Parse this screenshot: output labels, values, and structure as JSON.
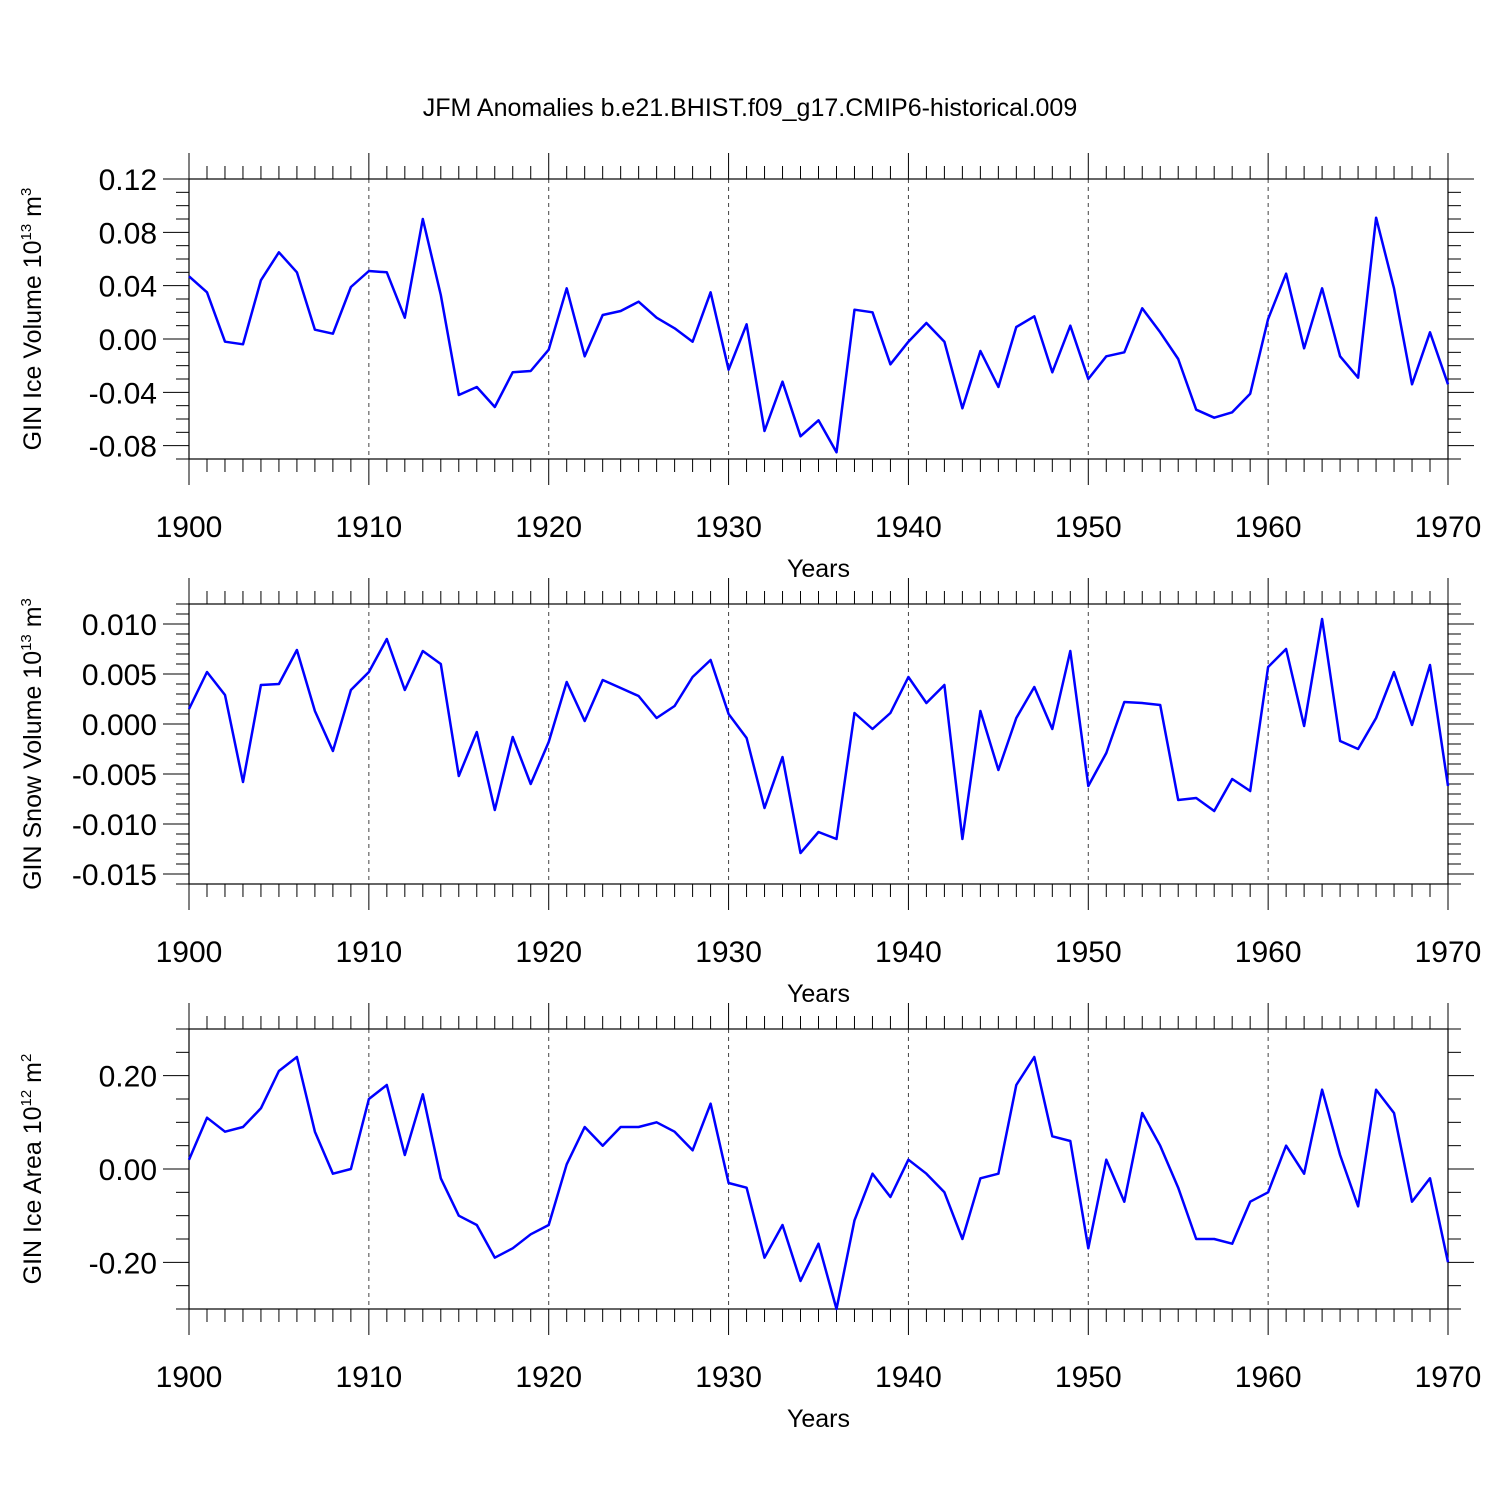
{
  "title": "JFM Anomalies b.e21.BHIST.f09_g17.CMIP6-historical.009",
  "line_color": "#0000ff",
  "chart_data": [
    {
      "type": "line",
      "name": "ice-volume",
      "ylabel": {
        "main": "GIN Ice Volume 10",
        "sup1": "13",
        "mid": " m",
        "sup2": "3"
      },
      "xlabel": "Years",
      "xlim": [
        1900,
        1970
      ],
      "ylim": [
        -0.09,
        0.12
      ],
      "x_ticks": [
        1900,
        1910,
        1920,
        1930,
        1940,
        1950,
        1960,
        1970
      ],
      "x_tick_labels": [
        "1900",
        "1910",
        "1920",
        "1930",
        "1940",
        "1950",
        "1960",
        "1970"
      ],
      "y_ticks": [
        -0.08,
        -0.04,
        0,
        0.04,
        0.08,
        0.12
      ],
      "y_tick_labels": [
        "-0.08",
        "-0.04",
        "0.00",
        "0.04",
        "0.08",
        "0.12"
      ],
      "y_minor_step": 0.01,
      "x_start": 1900,
      "values": [
        0.047,
        0.035,
        -0.002,
        -0.004,
        0.044,
        0.065,
        0.05,
        0.007,
        0.004,
        0.039,
        0.051,
        0.05,
        0.016,
        0.09,
        0.033,
        -0.042,
        -0.036,
        -0.051,
        -0.025,
        -0.024,
        -0.008,
        0.038,
        -0.013,
        0.018,
        0.021,
        0.028,
        0.016,
        0.008,
        -0.002,
        0.035,
        -0.023,
        0.011,
        -0.069,
        -0.032,
        -0.073,
        -0.061,
        -0.085,
        0.022,
        0.02,
        -0.019,
        -0.002,
        0.012,
        -0.002,
        -0.052,
        -0.009,
        -0.036,
        0.009,
        0.017,
        -0.025,
        0.01,
        -0.03,
        -0.013,
        -0.01,
        0.023,
        0.005,
        -0.015,
        -0.053,
        -0.059,
        -0.055,
        -0.041,
        0.015,
        0.049,
        -0.007,
        0.038,
        -0.013,
        -0.029,
        0.091,
        0.038,
        -0.034,
        0.005,
        -0.034
      ]
    },
    {
      "type": "line",
      "name": "snow-volume",
      "ylabel": {
        "main": "GIN Snow Volume 10",
        "sup1": "13",
        "mid": " m",
        "sup2": "3"
      },
      "xlabel": "Years",
      "xlim": [
        1900,
        1970
      ],
      "ylim": [
        -0.016,
        0.012
      ],
      "x_ticks": [
        1900,
        1910,
        1920,
        1930,
        1940,
        1950,
        1960,
        1970
      ],
      "x_tick_labels": [
        "1900",
        "1910",
        "1920",
        "1930",
        "1940",
        "1950",
        "1960",
        "1970"
      ],
      "y_ticks": [
        -0.015,
        -0.01,
        -0.005,
        0,
        0.005,
        0.01
      ],
      "y_tick_labels": [
        "-0.015",
        "-0.010",
        "-0.005",
        "0.000",
        "0.005",
        "0.010"
      ],
      "y_minor_step": 0.001,
      "x_start": 1900,
      "values": [
        0.0015,
        0.0052,
        0.0029,
        -0.0058,
        0.0039,
        0.004,
        0.0074,
        0.0013,
        -0.0027,
        0.0034,
        0.0052,
        0.0085,
        0.0034,
        0.0073,
        0.006,
        -0.0052,
        -0.0008,
        -0.0086,
        -0.0013,
        -0.006,
        -0.0018,
        0.0042,
        0.0003,
        0.0044,
        0.0036,
        0.0028,
        0.0006,
        0.0018,
        0.0047,
        0.0064,
        0.001,
        -0.0014,
        -0.0084,
        -0.0033,
        -0.0129,
        -0.0108,
        -0.0115,
        0.0011,
        -0.0005,
        0.0011,
        0.0047,
        0.0021,
        0.0039,
        -0.0115,
        0.0013,
        -0.0046,
        0.0006,
        0.0037,
        -0.0005,
        0.0073,
        -0.0062,
        -0.0029,
        0.0022,
        0.0021,
        0.0019,
        -0.0076,
        -0.0074,
        -0.0087,
        -0.0055,
        -0.0067,
        0.0057,
        0.0075,
        -0.0002,
        0.0105,
        -0.0017,
        -0.0025,
        0.0006,
        0.0052,
        -0.0001,
        0.0059,
        -0.0062
      ]
    },
    {
      "type": "line",
      "name": "ice-area",
      "ylabel": {
        "main": "GIN Ice Area 10",
        "sup1": "12",
        "mid": " m",
        "sup2": "2"
      },
      "xlabel": "Years",
      "xlim": [
        1900,
        1970
      ],
      "ylim": [
        -0.3,
        0.3
      ],
      "x_ticks": [
        1900,
        1910,
        1920,
        1930,
        1940,
        1950,
        1960,
        1970
      ],
      "x_tick_labels": [
        "1900",
        "1910",
        "1920",
        "1930",
        "1940",
        "1950",
        "1960",
        "1970"
      ],
      "y_ticks": [
        -0.2,
        0,
        0.2
      ],
      "y_tick_labels": [
        "-0.20",
        "0.00",
        "0.20"
      ],
      "y_minor_step": 0.05,
      "x_start": 1900,
      "values": [
        0.02,
        0.11,
        0.08,
        0.09,
        0.13,
        0.21,
        0.24,
        0.08,
        -0.01,
        0.0,
        0.15,
        0.18,
        0.03,
        0.16,
        -0.02,
        -0.1,
        -0.12,
        -0.19,
        -0.17,
        -0.14,
        -0.12,
        0.01,
        0.09,
        0.05,
        0.09,
        0.09,
        0.1,
        0.08,
        0.04,
        0.14,
        -0.03,
        -0.04,
        -0.19,
        -0.12,
        -0.24,
        -0.16,
        -0.3,
        -0.11,
        -0.01,
        -0.06,
        0.02,
        -0.01,
        -0.05,
        -0.15,
        -0.02,
        -0.01,
        0.18,
        0.24,
        0.07,
        0.06,
        -0.17,
        0.02,
        -0.07,
        0.12,
        0.05,
        -0.04,
        -0.15,
        -0.15,
        -0.16,
        -0.07,
        -0.05,
        0.05,
        -0.01,
        0.17,
        0.03,
        -0.08,
        0.17,
        0.12,
        -0.07,
        -0.02,
        -0.2
      ]
    }
  ]
}
